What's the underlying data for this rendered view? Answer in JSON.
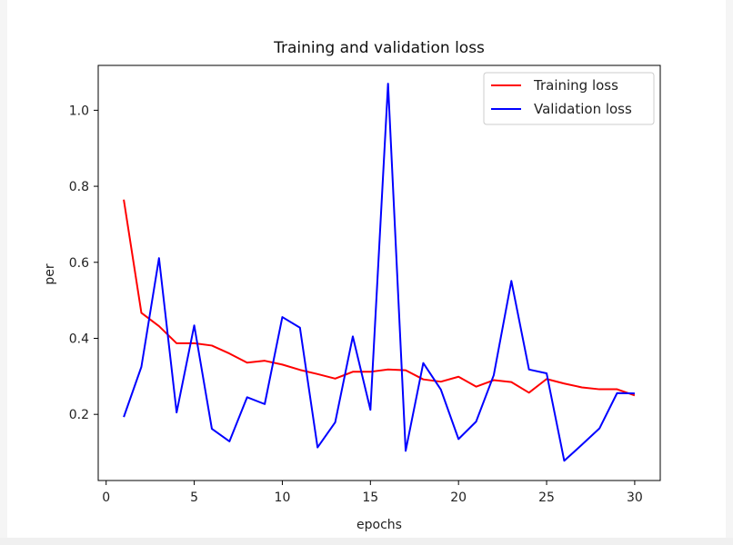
{
  "chart_data": {
    "type": "line",
    "title": "Training and validation loss",
    "xlabel": "epochs",
    "ylabel": "per",
    "xlim": [
      -0.45,
      31.45
    ],
    "ylim": [
      0.026,
      1.118
    ],
    "xticks": [
      0,
      5,
      10,
      15,
      20,
      25,
      30
    ],
    "yticks": [
      0.2,
      0.4,
      0.6,
      0.8,
      1.0
    ],
    "ytick_labels": [
      "0.2",
      "0.4",
      "0.6",
      "0.8",
      "1.0"
    ],
    "legend_position": "upper right",
    "x": [
      1,
      2,
      3,
      4,
      5,
      6,
      7,
      8,
      9,
      10,
      11,
      12,
      13,
      14,
      15,
      16,
      17,
      18,
      19,
      20,
      21,
      22,
      23,
      24,
      25,
      26,
      27,
      28,
      29,
      30
    ],
    "series": [
      {
        "name": "Training loss",
        "color": "#ff0000",
        "values": [
          0.765,
          0.467,
          0.432,
          0.387,
          0.387,
          0.381,
          0.36,
          0.336,
          0.341,
          0.331,
          0.317,
          0.306,
          0.294,
          0.312,
          0.312,
          0.318,
          0.316,
          0.292,
          0.286,
          0.299,
          0.273,
          0.29,
          0.285,
          0.257,
          0.293,
          0.281,
          0.271,
          0.266,
          0.266,
          0.25
        ]
      },
      {
        "name": "Validation loss",
        "color": "#0000ff",
        "values": [
          0.193,
          0.325,
          0.611,
          0.205,
          0.434,
          0.162,
          0.129,
          0.245,
          0.227,
          0.456,
          0.428,
          0.113,
          0.179,
          0.405,
          0.212,
          1.07,
          0.104,
          0.335,
          0.265,
          0.135,
          0.181,
          0.303,
          0.551,
          0.318,
          0.308,
          0.078,
          0.12,
          0.163,
          0.256,
          0.255
        ]
      }
    ]
  }
}
